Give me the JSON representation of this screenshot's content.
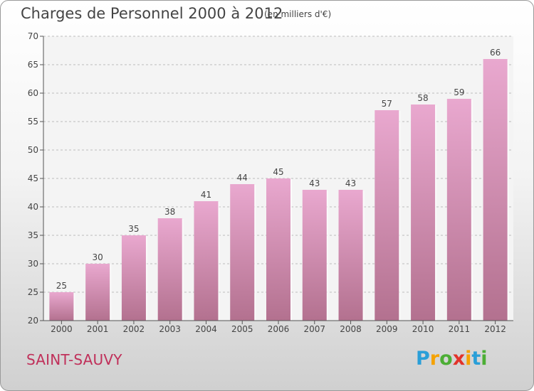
{
  "title": "Charges de Personnel 2000 à 2012",
  "subtitle": "(en milliers d'€)",
  "place": "SAINT-SAUVY",
  "brand": {
    "letters": [
      "P",
      "r",
      "o",
      "x",
      "i",
      "t",
      "i"
    ],
    "colors": [
      "#2a9fd8",
      "#f5a200",
      "#4cae35",
      "#e2332a",
      "#f5a200",
      "#2a9fd8",
      "#4cae35"
    ]
  },
  "colors": {
    "bar_top": "#e9a8cf",
    "bar_bottom": "#b3718f",
    "axis": "#555555",
    "grid": "#bdbdbd"
  },
  "chart_data": {
    "type": "bar",
    "categories": [
      "2000",
      "2001",
      "2002",
      "2003",
      "2004",
      "2005",
      "2006",
      "2007",
      "2008",
      "2009",
      "2010",
      "2011",
      "2012"
    ],
    "values": [
      25,
      30,
      35,
      38,
      41,
      44,
      45,
      43,
      43,
      57,
      58,
      59,
      66
    ],
    "ylim": [
      20,
      70
    ],
    "yticks": [
      20,
      25,
      30,
      35,
      40,
      45,
      50,
      55,
      60,
      65,
      70
    ],
    "grid": true,
    "title": "Charges de Personnel 2000 à 2012",
    "xlabel": "",
    "ylabel": ""
  }
}
